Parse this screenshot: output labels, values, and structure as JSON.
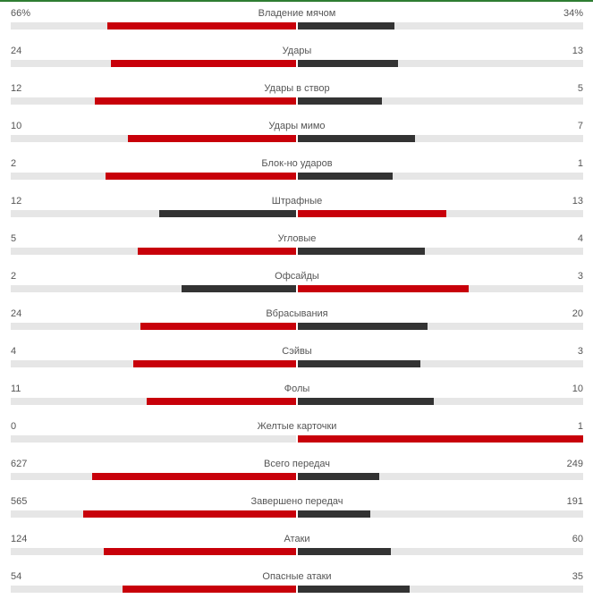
{
  "colors": {
    "leader": "#c8000a",
    "trailer": "#333333",
    "track": "#e6e6e6",
    "topline": "#2e7d32"
  },
  "stats": [
    {
      "name": "Владение мячом",
      "home": "66%",
      "away": "34%",
      "home_share": 0.66,
      "away_share": 0.34
    },
    {
      "name": "Удары",
      "home": "24",
      "away": "13",
      "home_share": 0.648,
      "away_share": 0.352
    },
    {
      "name": "Удары в створ",
      "home": "12",
      "away": "5",
      "home_share": 0.706,
      "away_share": 0.294
    },
    {
      "name": "Удары мимо",
      "home": "10",
      "away": "7",
      "home_share": 0.588,
      "away_share": 0.412
    },
    {
      "name": "Блок-но ударов",
      "home": "2",
      "away": "1",
      "home_share": 0.667,
      "away_share": 0.333
    },
    {
      "name": "Штрафные",
      "home": "12",
      "away": "13",
      "home_share": 0.48,
      "away_share": 0.52
    },
    {
      "name": "Угловые",
      "home": "5",
      "away": "4",
      "home_share": 0.556,
      "away_share": 0.444
    },
    {
      "name": "Офсайды",
      "home": "2",
      "away": "3",
      "home_share": 0.4,
      "away_share": 0.6
    },
    {
      "name": "Вбрасывания",
      "home": "24",
      "away": "20",
      "home_share": 0.545,
      "away_share": 0.455
    },
    {
      "name": "Сэйвы",
      "home": "4",
      "away": "3",
      "home_share": 0.571,
      "away_share": 0.429
    },
    {
      "name": "Фолы",
      "home": "11",
      "away": "10",
      "home_share": 0.524,
      "away_share": 0.476
    },
    {
      "name": "Желтые карточки",
      "home": "0",
      "away": "1",
      "home_share": 0.0,
      "away_share": 1.0
    },
    {
      "name": "Всего передач",
      "home": "627",
      "away": "249",
      "home_share": 0.716,
      "away_share": 0.284
    },
    {
      "name": "Завершено передач",
      "home": "565",
      "away": "191",
      "home_share": 0.747,
      "away_share": 0.253
    },
    {
      "name": "Атаки",
      "home": "124",
      "away": "60",
      "home_share": 0.674,
      "away_share": 0.326
    },
    {
      "name": "Опасные атаки",
      "home": "54",
      "away": "35",
      "home_share": 0.607,
      "away_share": 0.393
    }
  ]
}
